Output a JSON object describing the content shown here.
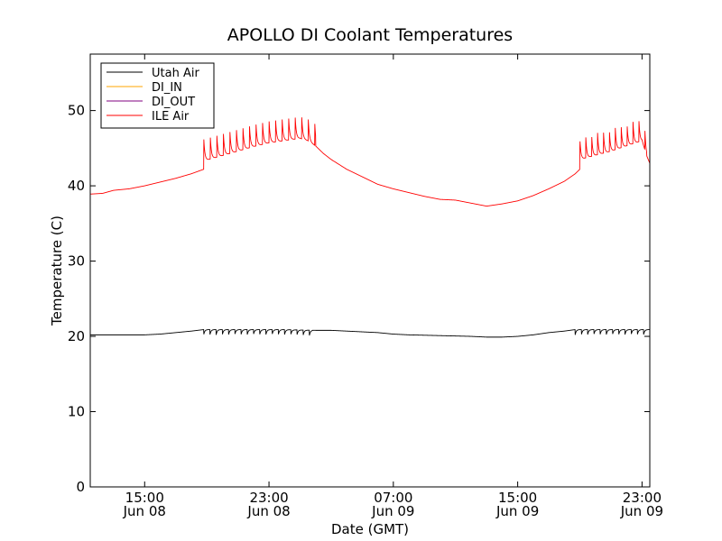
{
  "chart_data": {
    "type": "line",
    "title": "APOLLO DI Coolant Temperatures",
    "xlabel": "Date (GMT)",
    "ylabel": "Temperature (C)",
    "xlim_hours": [
      11.5,
      47.5
    ],
    "ylim": [
      0,
      57.5
    ],
    "yticks": [
      0,
      10,
      20,
      30,
      40,
      50
    ],
    "xticks": [
      {
        "hour": 15,
        "line1": "15:00",
        "line2": "Jun 08"
      },
      {
        "hour": 23,
        "line1": "23:00",
        "line2": "Jun 08"
      },
      {
        "hour": 31,
        "line1": "07:00",
        "line2": "Jun 09"
      },
      {
        "hour": 39,
        "line1": "15:00",
        "line2": "Jun 09"
      },
      {
        "hour": 47,
        "line1": "23:00",
        "line2": "Jun 09"
      }
    ],
    "legend_position": "top-left",
    "series": [
      {
        "name": "Utah Air",
        "color": "#000000",
        "base_points": [
          [
            11.5,
            20.2
          ],
          [
            14,
            20.2
          ],
          [
            15,
            20.2
          ],
          [
            16,
            20.3
          ],
          [
            17,
            20.5
          ],
          [
            18,
            20.7
          ],
          [
            18.8,
            20.9
          ],
          [
            20,
            20.9
          ],
          [
            22,
            20.9
          ],
          [
            24,
            20.9
          ],
          [
            26,
            20.8
          ],
          [
            27,
            20.8
          ],
          [
            28,
            20.7
          ],
          [
            30,
            20.5
          ],
          [
            31,
            20.3
          ],
          [
            32,
            20.2
          ],
          [
            34,
            20.1
          ],
          [
            36,
            20.0
          ],
          [
            37,
            19.9
          ],
          [
            38,
            19.9
          ],
          [
            39,
            20.0
          ],
          [
            40,
            20.2
          ],
          [
            41,
            20.5
          ],
          [
            42,
            20.7
          ],
          [
            42.7,
            20.9
          ],
          [
            45,
            20.9
          ],
          [
            47.5,
            20.9
          ]
        ],
        "spikes": {
          "start": 18.8,
          "end": 25.8,
          "period": 0.4,
          "amplitude": -0.7
        },
        "spikes2": {
          "start": 42.7,
          "end": 47.5,
          "period": 0.4,
          "amplitude": -0.7
        }
      },
      {
        "name": "DI_IN",
        "color": "#ffa500",
        "base_points": []
      },
      {
        "name": "DI_OUT",
        "color": "#800080",
        "base_points": []
      },
      {
        "name": "ILE Air",
        "color": "#ff0000",
        "base_points": [
          [
            11.5,
            38.9
          ],
          [
            12.3,
            39.0
          ],
          [
            13,
            39.4
          ],
          [
            14,
            39.6
          ],
          [
            15,
            40.0
          ],
          [
            16,
            40.5
          ],
          [
            17,
            41.0
          ],
          [
            18,
            41.6
          ],
          [
            18.8,
            42.2
          ],
          [
            18.8,
            43.3
          ],
          [
            20,
            44.0
          ],
          [
            21,
            44.6
          ],
          [
            22,
            45.2
          ],
          [
            23,
            45.7
          ],
          [
            24,
            46.0
          ],
          [
            25,
            46.3
          ],
          [
            25.5,
            46.0
          ],
          [
            26,
            45.3
          ],
          [
            26.5,
            44.3
          ],
          [
            27,
            43.5
          ],
          [
            28,
            42.2
          ],
          [
            29,
            41.2
          ],
          [
            30,
            40.2
          ],
          [
            31,
            39.6
          ],
          [
            32,
            39.1
          ],
          [
            33,
            38.6
          ],
          [
            34,
            38.2
          ],
          [
            35,
            38.1
          ],
          [
            36,
            37.7
          ],
          [
            37,
            37.3
          ],
          [
            38,
            37.6
          ],
          [
            39,
            38.0
          ],
          [
            40,
            38.7
          ],
          [
            41,
            39.6
          ],
          [
            42,
            40.6
          ],
          [
            42.7,
            41.6
          ],
          [
            43,
            42.2
          ],
          [
            43,
            43.5
          ],
          [
            45,
            44.6
          ],
          [
            46,
            45.3
          ],
          [
            47,
            46.0
          ],
          [
            47.3,
            44.0
          ],
          [
            47.5,
            43.0
          ]
        ],
        "spikes": {
          "start": 18.8,
          "end": 26.0,
          "period": 0.42,
          "amplitude": 3.2
        },
        "spikes2": {
          "start": 43.0,
          "end": 47.3,
          "period": 0.38,
          "amplitude": 2.9
        }
      }
    ]
  }
}
